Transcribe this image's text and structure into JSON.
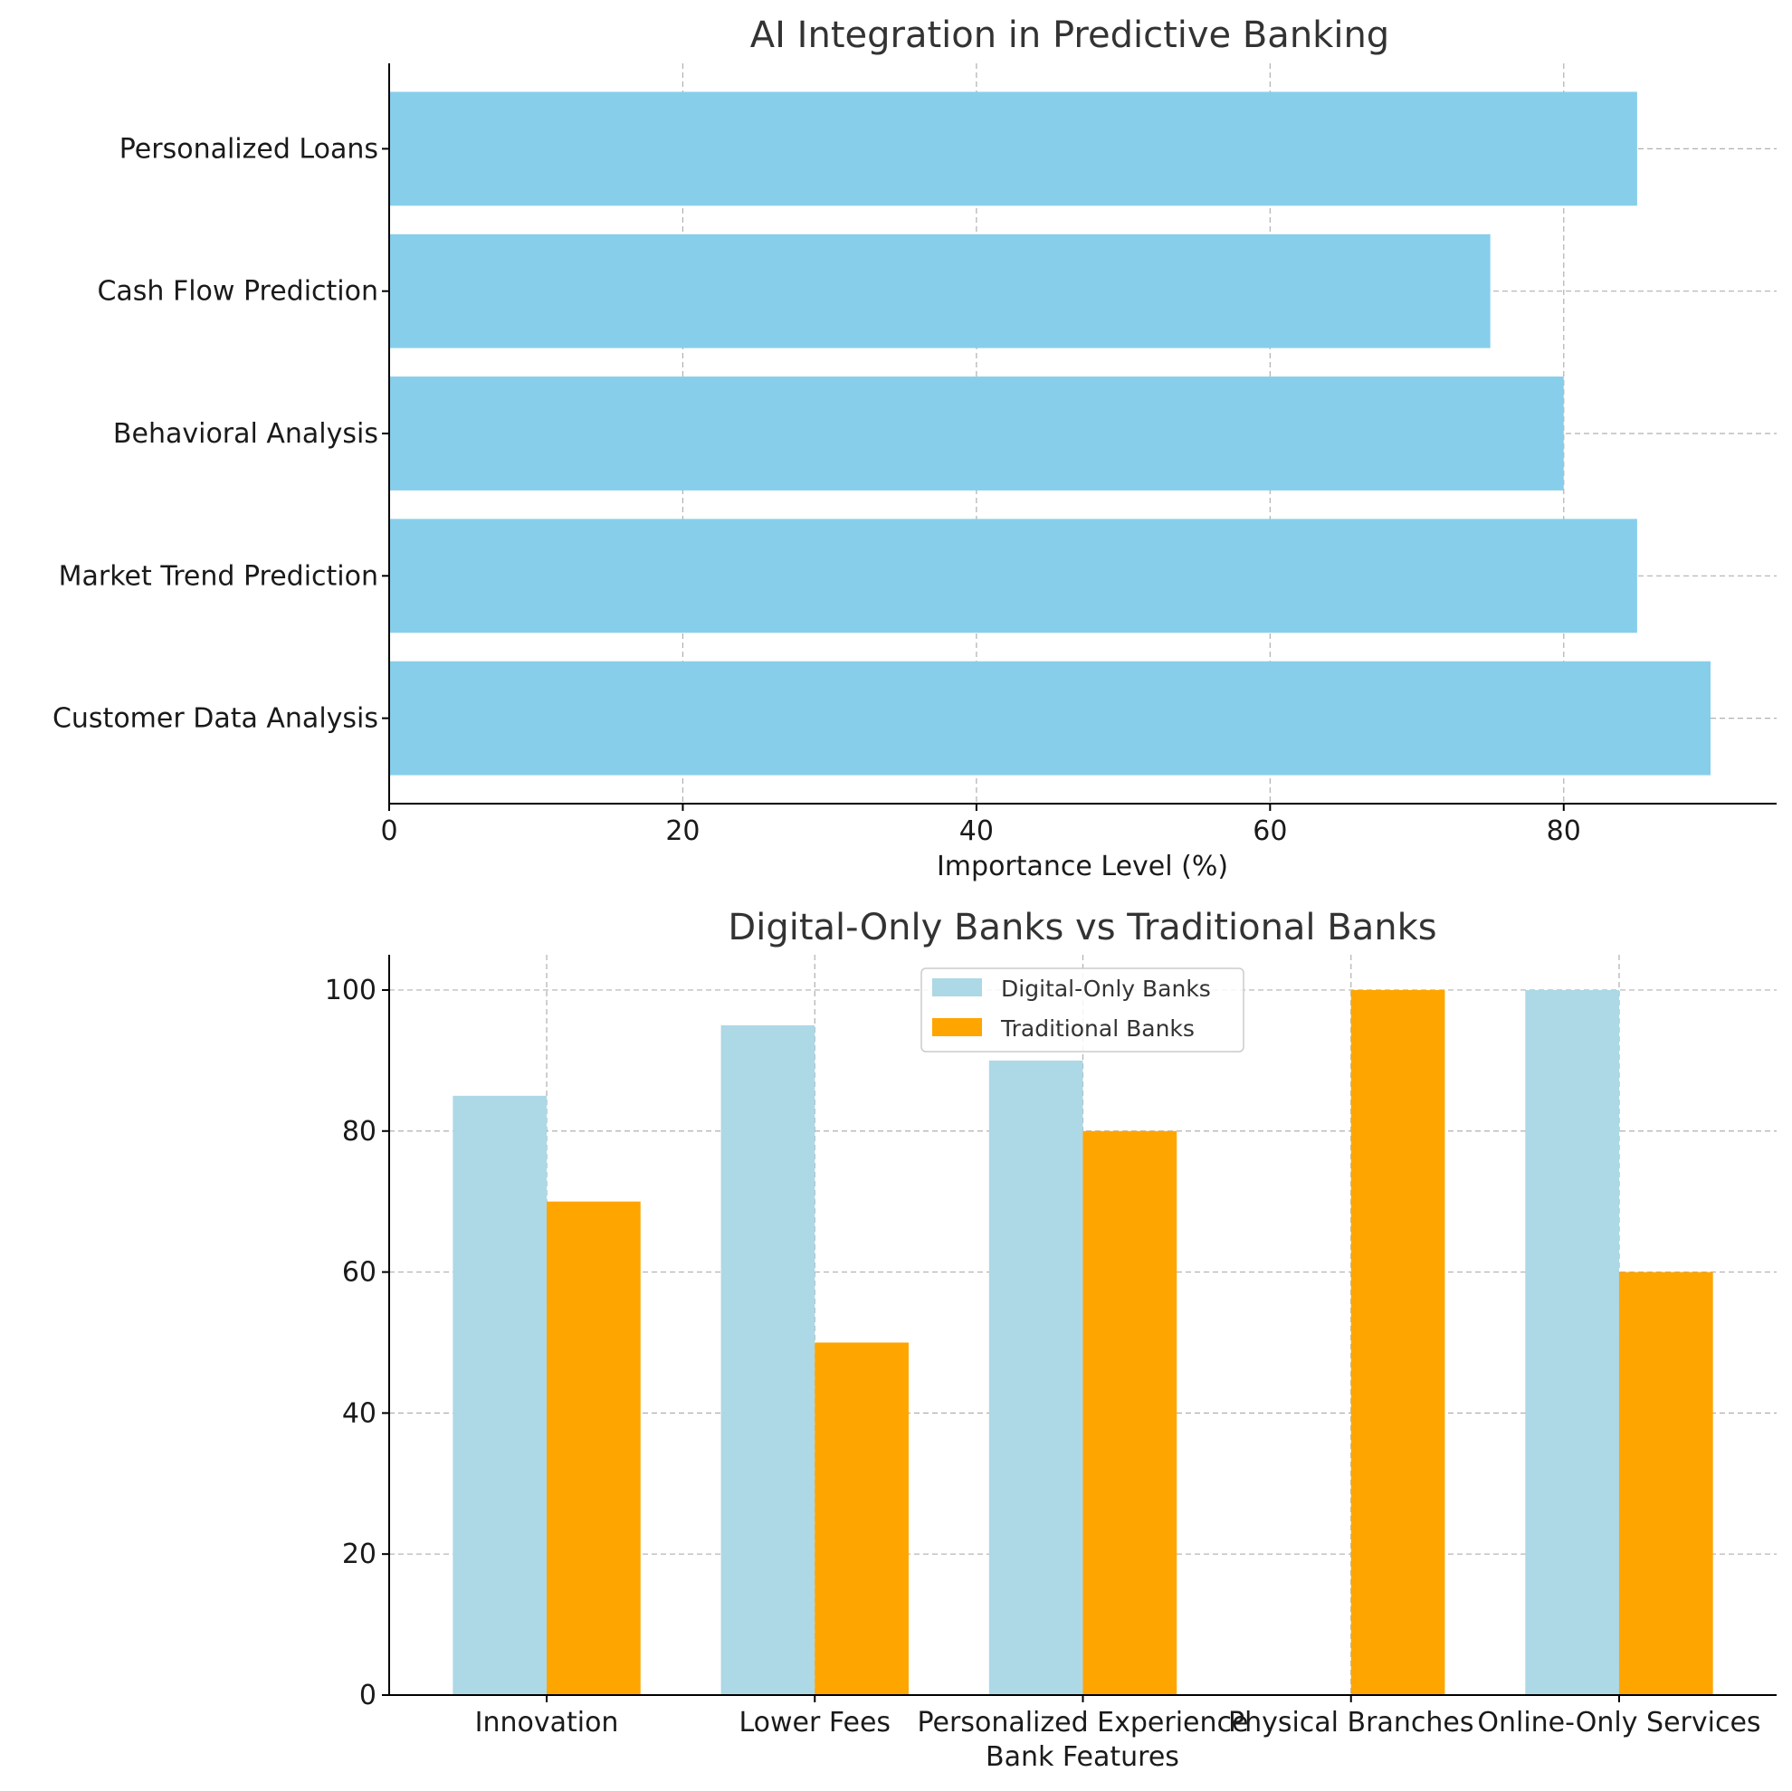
{
  "chart_data": [
    {
      "type": "bar",
      "orientation": "horizontal",
      "title": "AI Integration in Predictive Banking",
      "xlabel": "Importance Level (%)",
      "ylabel": "",
      "categories": [
        "Customer Data Analysis",
        "Market Trend Prediction",
        "Behavioral Analysis",
        "Cash Flow Prediction",
        "Personalized Loans"
      ],
      "values": [
        90,
        85,
        80,
        75,
        85
      ],
      "xlim": [
        0,
        94.5
      ],
      "xticks": [
        0,
        20,
        40,
        60,
        80
      ],
      "grid": true,
      "color": "#87CEEB"
    },
    {
      "type": "bar",
      "orientation": "vertical",
      "title": "Digital-Only Banks vs Traditional Banks",
      "xlabel": "Bank Features",
      "ylabel": "",
      "categories": [
        "Innovation",
        "Lower Fees",
        "Personalized Experience",
        "Physical Branches",
        "Online-Only Services"
      ],
      "series": [
        {
          "name": "Digital-Only Banks",
          "values": [
            85,
            95,
            90,
            0,
            100
          ],
          "color": "#ADD8E6"
        },
        {
          "name": "Traditional Banks",
          "values": [
            70,
            50,
            80,
            100,
            60
          ],
          "color": "#FFA500"
        }
      ],
      "ylim": [
        0,
        105
      ],
      "yticks": [
        0,
        20,
        40,
        60,
        80,
        100
      ],
      "grid": true,
      "legend_position": "upper center"
    }
  ]
}
